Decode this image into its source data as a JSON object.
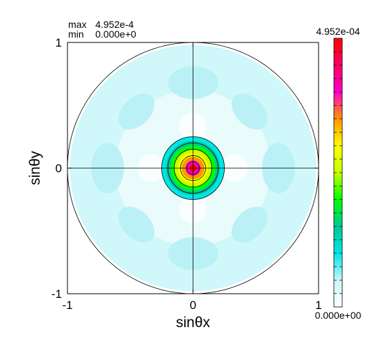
{
  "chart_data": {
    "type": "heatmap",
    "title": "",
    "xlabel": "sinθx",
    "ylabel": "sinθy",
    "xlim": [
      -1,
      1
    ],
    "ylim": [
      -1,
      1
    ],
    "x_ticks": [
      "-1",
      "0",
      "1"
    ],
    "y_ticks": [
      "1",
      "0",
      "-1"
    ],
    "stats": {
      "max_label": "max",
      "max_value": "4.952e-4",
      "min_label": "min",
      "min_value": "0.000e+0"
    },
    "colorbar": {
      "max_label": "4.952e-04",
      "min_label": "0.000e+00",
      "range": [
        0.0,
        0.0004952
      ],
      "colors": [
        "#ffffff",
        "#c8f6f8",
        "#00e6e6",
        "#00c896",
        "#00ff00",
        "#c8ff00",
        "#ffff00",
        "#ff9600",
        "#ff00c8",
        "#ff0064",
        "#ff0000"
      ]
    },
    "features": {
      "unit_circle_radius": 1.0,
      "contour_levels": [
        0.05,
        0.1,
        0.15,
        0.2,
        0.25
      ],
      "peak_location": [
        0,
        0
      ],
      "peak_value": 0.0004952,
      "min_value": 0.0,
      "grid": false,
      "crosshair_axes": true
    }
  }
}
